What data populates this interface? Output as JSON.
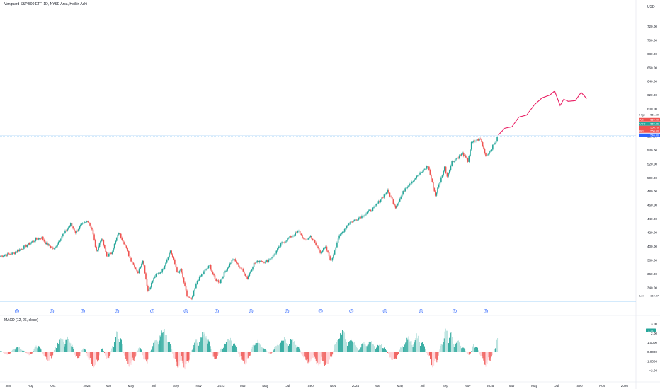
{
  "header": {
    "title": "Vanguard S&P 500 ETF, 1D, NYSE Arca, Heikin Ashi",
    "currency": "USD",
    "macd_title": "MACD (12, 26, close)"
  },
  "colors": {
    "up": "#26a69a",
    "up_light": "#b2dfdb",
    "down": "#ef5350",
    "down_light": "#ffcdd2",
    "forecast": "#e91e63",
    "axis_text": "#131722",
    "badge_blue": "#2962ff",
    "price_line": "#2196f3"
  },
  "chart_data": [
    {
      "type": "candlestick",
      "title": "Vanguard S&P 500 ETF, 1D, NYSE Arca, Heikin Ashi",
      "y_unit": "USD",
      "ylim": [
        314,
        744
      ],
      "yticks": [
        340,
        360,
        380,
        400,
        420,
        440,
        460,
        480,
        500,
        520,
        540,
        560,
        580,
        600,
        620,
        640,
        660,
        680,
        700,
        720
      ],
      "y_tick_labels": [
        "340.00",
        "360.00",
        "380.00",
        "400.00",
        "420.00",
        "440.00",
        "460.00",
        "480.00",
        "500.00",
        "520.00",
        "540.00",
        "560.00",
        "580.00",
        "600.00",
        "620.00",
        "640.00",
        "660.00",
        "680.00",
        "700.00",
        "720.00"
      ],
      "xlim": [
        "2021-05-10",
        "2026-02-01"
      ],
      "x_tick_labels": [
        {
          "date": "2021-06-01",
          "label": "Jun"
        },
        {
          "date": "2021-08-01",
          "label": "Aug"
        },
        {
          "date": "2021-10-01",
          "label": "Oct"
        },
        {
          "date": "2022-01-01",
          "label": "2022"
        },
        {
          "date": "2022-03-01",
          "label": "Mar"
        },
        {
          "date": "2022-05-01",
          "label": "May"
        },
        {
          "date": "2022-07-01",
          "label": "Jul"
        },
        {
          "date": "2022-09-01",
          "label": "Sep"
        },
        {
          "date": "2022-11-01",
          "label": "Nov"
        },
        {
          "date": "2023-01-01",
          "label": "2023"
        },
        {
          "date": "2023-03-01",
          "label": "Mar"
        },
        {
          "date": "2023-05-01",
          "label": "May"
        },
        {
          "date": "2023-07-01",
          "label": "Jul"
        },
        {
          "date": "2023-09-01",
          "label": "Sep"
        },
        {
          "date": "2023-11-01",
          "label": "Nov"
        },
        {
          "date": "2024-01-01",
          "label": "2024"
        },
        {
          "date": "2024-03-01",
          "label": "Mar"
        },
        {
          "date": "2024-05-01",
          "label": "May"
        },
        {
          "date": "2024-07-01",
          "label": "Jul"
        },
        {
          "date": "2024-09-01",
          "label": "Sep"
        },
        {
          "date": "2024-11-01",
          "label": "Nov"
        },
        {
          "date": "2025-01-01",
          "label": "2025"
        },
        {
          "date": "2025-03-01",
          "label": "Mar"
        },
        {
          "date": "2025-05-01",
          "label": "May"
        },
        {
          "date": "2025-07-01",
          "label": "Jul"
        },
        {
          "date": "2025-09-01",
          "label": "Sep"
        },
        {
          "date": "2025-11-01",
          "label": "Nov"
        },
        {
          "date": "2026-01-01",
          "label": "2026"
        }
      ],
      "price_path": [
        [
          "2021-05-10",
          386
        ],
        [
          "2021-06-15",
          390
        ],
        [
          "2021-07-20",
          401
        ],
        [
          "2021-08-15",
          410
        ],
        [
          "2021-09-01",
          413
        ],
        [
          "2021-09-10",
          405
        ],
        [
          "2021-10-04",
          396
        ],
        [
          "2021-10-25",
          415
        ],
        [
          "2021-11-18",
          432
        ],
        [
          "2021-12-01",
          420
        ],
        [
          "2021-12-15",
          430
        ],
        [
          "2022-01-04",
          437
        ],
        [
          "2022-01-15",
          425
        ],
        [
          "2022-01-27",
          392
        ],
        [
          "2022-02-10",
          412
        ],
        [
          "2022-02-24",
          386
        ],
        [
          "2022-03-08",
          390
        ],
        [
          "2022-03-29",
          420
        ],
        [
          "2022-04-12",
          405
        ],
        [
          "2022-04-28",
          383
        ],
        [
          "2022-05-20",
          362
        ],
        [
          "2022-06-02",
          381
        ],
        [
          "2022-06-16",
          335
        ],
        [
          "2022-07-05",
          357
        ],
        [
          "2022-07-25",
          365
        ],
        [
          "2022-08-16",
          394
        ],
        [
          "2022-09-06",
          360
        ],
        [
          "2022-09-13",
          367
        ],
        [
          "2022-09-30",
          328
        ],
        [
          "2022-10-12",
          322
        ],
        [
          "2022-10-28",
          350
        ],
        [
          "2022-11-18",
          365
        ],
        [
          "2022-12-01",
          372
        ],
        [
          "2022-12-15",
          352
        ],
        [
          "2022-12-28",
          348
        ],
        [
          "2023-01-12",
          364
        ],
        [
          "2023-02-02",
          382
        ],
        [
          "2023-02-24",
          368
        ],
        [
          "2023-03-13",
          354
        ],
        [
          "2023-03-31",
          375
        ],
        [
          "2023-04-18",
          380
        ],
        [
          "2023-05-01",
          377
        ],
        [
          "2023-05-22",
          386
        ],
        [
          "2023-06-15",
          405
        ],
        [
          "2023-07-31",
          422
        ],
        [
          "2023-08-16",
          408
        ],
        [
          "2023-09-01",
          415
        ],
        [
          "2023-09-27",
          392
        ],
        [
          "2023-10-12",
          398
        ],
        [
          "2023-10-27",
          378
        ],
        [
          "2023-11-15",
          412
        ],
        [
          "2023-12-14",
          434
        ],
        [
          "2023-12-29",
          438
        ],
        [
          "2024-01-24",
          446
        ],
        [
          "2024-02-20",
          456
        ],
        [
          "2024-03-28",
          481
        ],
        [
          "2024-04-19",
          457
        ],
        [
          "2024-05-15",
          485
        ],
        [
          "2024-06-18",
          503
        ],
        [
          "2024-07-16",
          517
        ],
        [
          "2024-08-05",
          474
        ],
        [
          "2024-08-30",
          515
        ],
        [
          "2024-09-06",
          502
        ],
        [
          "2024-09-19",
          523
        ],
        [
          "2024-10-18",
          535
        ],
        [
          "2024-11-01",
          524
        ],
        [
          "2024-11-11",
          550
        ],
        [
          "2024-11-26",
          555
        ],
        [
          "2024-12-06",
          556
        ],
        [
          "2024-12-20",
          532
        ],
        [
          "2025-01-02",
          540
        ],
        [
          "2025-01-23",
          560
        ]
      ],
      "forecast_path": [
        [
          "2025-01-23",
          562
        ],
        [
          "2025-02-10",
          572
        ],
        [
          "2025-03-01",
          574
        ],
        [
          "2025-03-20",
          588
        ],
        [
          "2025-04-10",
          591
        ],
        [
          "2025-05-01",
          606
        ],
        [
          "2025-05-22",
          616
        ],
        [
          "2025-06-12",
          620
        ],
        [
          "2025-06-25",
          626
        ],
        [
          "2025-07-10",
          605
        ],
        [
          "2025-07-20",
          614
        ],
        [
          "2025-08-01",
          611
        ],
        [
          "2025-08-20",
          612
        ],
        [
          "2025-09-05",
          624
        ],
        [
          "2025-09-20",
          615
        ]
      ],
      "price_levels": [
        {
          "label": "High",
          "value": "561.60"
        },
        {
          "label": "Ask",
          "value": "560.00"
        },
        {
          "label": "VOO",
          "value": "559.86"
        },
        {
          "label": "",
          "value": "554.70"
        },
        {
          "label": "Bid",
          "value": "550.00"
        },
        {
          "label": "",
          "value": "546.00"
        },
        {
          "label": "Low",
          "value": "319.87"
        }
      ],
      "markers": [
        {
          "date": "2021-06-25",
          "label": "D"
        },
        {
          "date": "2021-09-28",
          "label": "D"
        },
        {
          "date": "2021-12-21",
          "label": "D"
        },
        {
          "date": "2022-03-24",
          "label": "D"
        },
        {
          "date": "2022-06-28",
          "label": "D"
        },
        {
          "date": "2022-09-27",
          "label": "D"
        },
        {
          "date": "2022-12-20",
          "label": "D"
        },
        {
          "date": "2023-03-23",
          "label": "D"
        },
        {
          "date": "2023-06-29",
          "label": "D"
        },
        {
          "date": "2023-09-28",
          "label": "D"
        },
        {
          "date": "2023-12-21",
          "label": "D"
        },
        {
          "date": "2024-03-21",
          "label": "D"
        },
        {
          "date": "2024-06-27",
          "label": "D"
        },
        {
          "date": "2024-09-26",
          "label": "D"
        },
        {
          "date": "2024-12-20",
          "label": "D"
        }
      ]
    },
    {
      "type": "bar",
      "title": "MACD (12, 26, close)",
      "ylim": [
        -2.6,
        3.6
      ],
      "yticks": [
        -2,
        -1,
        0,
        1,
        2,
        3
      ],
      "y_tick_labels": [
        "−2.00",
        "−1.0000",
        "0.0000",
        "1.0000",
        "2.00",
        "3.00"
      ],
      "last_value": "2.31",
      "histogram": [
        [
          "2021-05-10",
          0.3
        ],
        [
          "2021-06-01",
          -0.6
        ],
        [
          "2021-06-20",
          0.8
        ],
        [
          "2021-07-10",
          0.4
        ],
        [
          "2021-08-01",
          -0.7
        ],
        [
          "2021-08-20",
          1.4
        ],
        [
          "2021-09-10",
          -1.1
        ],
        [
          "2021-09-25",
          -1.4
        ],
        [
          "2021-10-10",
          1.2
        ],
        [
          "2021-11-01",
          2.0
        ],
        [
          "2021-11-20",
          1.6
        ],
        [
          "2021-12-05",
          -1.5
        ],
        [
          "2021-12-25",
          1.0
        ],
        [
          "2022-01-10",
          -2.0
        ],
        [
          "2022-01-28",
          -2.5
        ],
        [
          "2022-02-10",
          1.0
        ],
        [
          "2022-02-28",
          -1.6
        ],
        [
          "2022-03-15",
          1.8
        ],
        [
          "2022-03-30",
          3.0
        ],
        [
          "2022-04-15",
          -1.2
        ],
        [
          "2022-05-05",
          -2.0
        ],
        [
          "2022-05-25",
          1.2
        ],
        [
          "2022-06-10",
          -2.2
        ],
        [
          "2022-06-25",
          0.6
        ],
        [
          "2022-07-15",
          2.6
        ],
        [
          "2022-08-10",
          2.8
        ],
        [
          "2022-08-30",
          -2.2
        ],
        [
          "2022-09-15",
          -1.4
        ],
        [
          "2022-09-30",
          -2.4
        ],
        [
          "2022-10-15",
          0.8
        ],
        [
          "2022-11-01",
          2.0
        ],
        [
          "2022-11-25",
          2.8
        ],
        [
          "2022-12-12",
          -1.6
        ],
        [
          "2023-01-05",
          1.0
        ],
        [
          "2023-02-01",
          2.2
        ],
        [
          "2023-02-25",
          -1.4
        ],
        [
          "2023-03-15",
          -1.6
        ],
        [
          "2023-04-01",
          1.8
        ],
        [
          "2023-04-25",
          0.8
        ],
        [
          "2023-05-15",
          -0.5
        ],
        [
          "2023-06-10",
          1.8
        ],
        [
          "2023-07-01",
          1.6
        ],
        [
          "2023-07-25",
          1.4
        ],
        [
          "2023-08-15",
          -1.3
        ],
        [
          "2023-09-10",
          -1.2
        ],
        [
          "2023-10-01",
          -1.8
        ],
        [
          "2023-10-25",
          -1.5
        ],
        [
          "2023-11-15",
          2.8
        ],
        [
          "2023-12-10",
          2.2
        ],
        [
          "2024-01-10",
          0.5
        ],
        [
          "2024-02-01",
          1.6
        ],
        [
          "2024-02-25",
          0.8
        ],
        [
          "2024-03-15",
          1.2
        ],
        [
          "2024-04-15",
          -1.8
        ],
        [
          "2024-05-10",
          1.6
        ],
        [
          "2024-06-05",
          1.8
        ],
        [
          "2024-06-25",
          2.2
        ],
        [
          "2024-07-20",
          -1.2
        ],
        [
          "2024-08-05",
          -2.4
        ],
        [
          "2024-08-25",
          2.2
        ],
        [
          "2024-09-10",
          3.0
        ],
        [
          "2024-09-25",
          1.4
        ],
        [
          "2024-10-15",
          1.2
        ],
        [
          "2024-11-05",
          -0.8
        ],
        [
          "2024-11-20",
          1.6
        ],
        [
          "2024-12-10",
          -1.2
        ],
        [
          "2024-12-28",
          -2.0
        ],
        [
          "2025-01-15",
          1.0
        ],
        [
          "2025-01-23",
          2.3
        ]
      ]
    }
  ]
}
